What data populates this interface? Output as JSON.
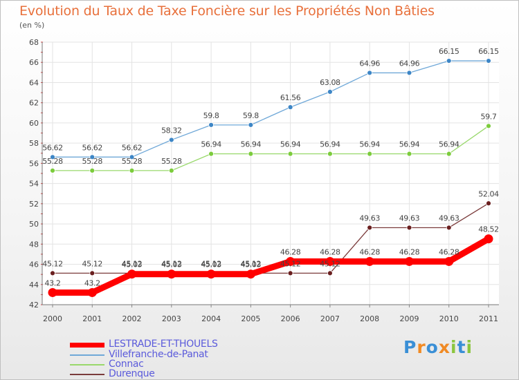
{
  "title": "Evolution du Taux de Taxe Foncière sur les Propriétés Non Bâties",
  "unit_label": "(en %)",
  "logo": {
    "text": "Proxiti",
    "letters": [
      "P",
      "r",
      "o",
      "x",
      "i",
      "t",
      "i"
    ],
    "colors": [
      "#3a8fd6",
      "#f08a24",
      "#3a8fd6",
      "#f08a24",
      "#8cc63f",
      "#3a8fd6",
      "#8cc63f"
    ]
  },
  "chart_data": {
    "type": "line",
    "x": [
      "2000",
      "2001",
      "2002",
      "2003",
      "2004",
      "2005",
      "2006",
      "2007",
      "2008",
      "2009",
      "2010",
      "2011"
    ],
    "ylim": [
      42,
      68
    ],
    "yticks": [
      "42",
      "44",
      "46",
      "48",
      "50",
      "52",
      "54",
      "56",
      "58",
      "60",
      "62",
      "64",
      "66",
      "68"
    ],
    "grid": true,
    "legend_position": "bottom-left",
    "series": [
      {
        "name": "LESTRADE-ET-THOUELS",
        "color": "#ff0000",
        "marker": "#ff0000",
        "emphasis": true,
        "values": [
          43.2,
          43.2,
          45.03,
          45.03,
          45.03,
          45.03,
          46.28,
          46.28,
          46.28,
          46.28,
          46.28,
          48.52
        ],
        "labels": [
          "43.2",
          "43.2",
          "45.03",
          "45.03",
          "45.03",
          "45.03",
          "46.28",
          "46.28",
          "46.28",
          "46.28",
          "46.28",
          "48.52"
        ]
      },
      {
        "name": "Villefranche-de-Panat",
        "color": "#6fa8d8",
        "marker": "#3d86c6",
        "values": [
          56.62,
          56.62,
          56.62,
          58.32,
          59.8,
          59.8,
          61.56,
          63.08,
          64.96,
          64.96,
          66.15,
          66.15
        ],
        "labels": [
          "56.62",
          "56.62",
          "56.62",
          "58.32",
          "59.8",
          "59.8",
          "61.56",
          "63.08",
          "64.96",
          "64.96",
          "66.15",
          "66.15"
        ]
      },
      {
        "name": "Connac",
        "color": "#98d86a",
        "marker": "#7ccc3c",
        "values": [
          55.28,
          55.28,
          55.28,
          55.28,
          56.94,
          56.94,
          56.94,
          56.94,
          56.94,
          56.94,
          56.94,
          59.7
        ],
        "labels": [
          "55.28",
          "55.28",
          "55.28",
          "55.28",
          "56.94",
          "56.94",
          "56.94",
          "56.94",
          "56.94",
          "56.94",
          "56.94",
          "59.7"
        ]
      },
      {
        "name": "Durenque",
        "color": "#7a3a3a",
        "marker": "#6a1f1f",
        "values": [
          45.12,
          45.12,
          45.12,
          45.12,
          45.12,
          45.12,
          45.12,
          45.12,
          49.63,
          49.63,
          49.63,
          52.04
        ],
        "labels": [
          "45.12",
          "45.12",
          "45.12",
          "45.12",
          "45.12",
          "45.12",
          "45.12",
          "45.12",
          "49.63",
          "49.63",
          "49.63",
          "52.04"
        ]
      }
    ]
  }
}
